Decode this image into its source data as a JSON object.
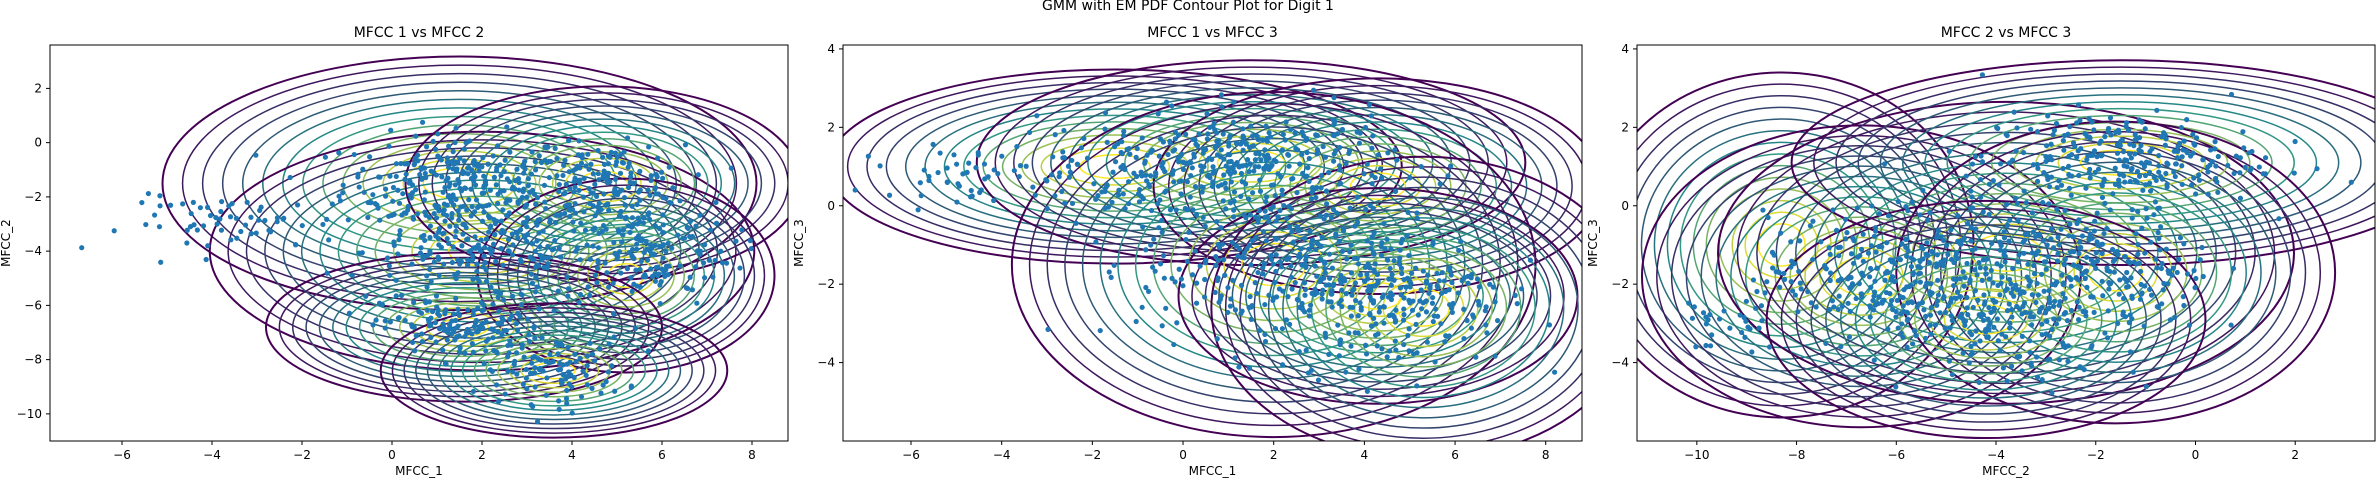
{
  "figure": {
    "title": "GMM with EM PDF Contour Plot for Digit 1"
  },
  "colors": {
    "points": "#1f77b4",
    "contour_low": "#440154",
    "contour_mid": "#21918c",
    "contour_high": "#fde725"
  },
  "chart_data": [
    {
      "type": "scatter",
      "title": "MFCC 1 vs MFCC 2",
      "xlabel": "MFCC_1",
      "ylabel": "MFCC_2",
      "xlim": [
        -7.6,
        8.8
      ],
      "ylim": [
        -11,
        3.6
      ],
      "xticks": [
        -6,
        -4,
        -2,
        0,
        2,
        4,
        6,
        8
      ],
      "yticks": [
        -10,
        -8,
        -6,
        -4,
        -2,
        0,
        2
      ],
      "overlay": "contour",
      "gaussian_components": [
        {
          "mean": [
            1.5,
            -1.5
          ],
          "sd": [
            2.4,
            1.7
          ]
        },
        {
          "mean": [
            2.0,
            -4.0
          ],
          "sd": [
            2.2,
            1.6
          ]
        },
        {
          "mean": [
            4.7,
            -1.5
          ],
          "sd": [
            1.6,
            1.3
          ]
        },
        {
          "mean": [
            5.2,
            -4.9
          ],
          "sd": [
            1.2,
            1.3
          ]
        },
        {
          "mean": [
            1.6,
            -6.8
          ],
          "sd": [
            1.6,
            1.0
          ]
        },
        {
          "mean": [
            3.6,
            -8.4
          ],
          "sd": [
            1.4,
            0.9
          ]
        }
      ],
      "point_clusters": [
        {
          "mean": [
            1.5,
            -1.5
          ],
          "sd": [
            1.3,
            0.9
          ],
          "n": 260
        },
        {
          "mean": [
            2.0,
            -4.0
          ],
          "sd": [
            1.3,
            0.9
          ],
          "n": 200
        },
        {
          "mean": [
            4.7,
            -1.5
          ],
          "sd": [
            0.9,
            0.7
          ],
          "n": 150
        },
        {
          "mean": [
            5.6,
            -4.0
          ],
          "sd": [
            1.0,
            1.0
          ],
          "n": 160
        },
        {
          "mean": [
            1.6,
            -6.8
          ],
          "sd": [
            0.9,
            0.6
          ],
          "n": 140
        },
        {
          "mean": [
            3.6,
            -8.4
          ],
          "sd": [
            0.8,
            0.6
          ],
          "n": 100
        },
        {
          "mean": [
            -3.5,
            -3.0
          ],
          "sd": [
            1.2,
            0.5
          ],
          "n": 60
        }
      ]
    },
    {
      "type": "scatter",
      "title": "MFCC 1 vs MFCC 3",
      "xlabel": "MFCC_1",
      "ylabel": "MFCC_3",
      "xlim": [
        -7.5,
        8.8
      ],
      "ylim": [
        -6.0,
        4.1
      ],
      "xticks": [
        -6,
        -4,
        -2,
        0,
        2,
        4,
        6,
        8
      ],
      "yticks": [
        -4,
        -2,
        0,
        2,
        4
      ],
      "overlay": "contour",
      "gaussian_components": [
        {
          "mean": [
            -1.5,
            1.0
          ],
          "sd": [
            2.3,
            0.9
          ]
        },
        {
          "mean": [
            1.5,
            1.1
          ],
          "sd": [
            2.2,
            0.95
          ]
        },
        {
          "mean": [
            4.3,
            0.5
          ],
          "sd": [
            1.8,
            1.0
          ]
        },
        {
          "mean": [
            2.0,
            -1.5
          ],
          "sd": [
            2.1,
            1.6
          ]
        },
        {
          "mean": [
            4.3,
            -2.3
          ],
          "sd": [
            1.6,
            1.0
          ]
        },
        {
          "mean": [
            5.3,
            -2.6
          ],
          "sd": [
            1.7,
            1.4
          ]
        }
      ],
      "point_clusters": [
        {
          "mean": [
            1.5,
            1.2
          ],
          "sd": [
            1.6,
            0.6
          ],
          "n": 250
        },
        {
          "mean": [
            -1.0,
            0.8
          ],
          "sd": [
            1.5,
            0.6
          ],
          "n": 120
        },
        {
          "mean": [
            2.0,
            -1.5
          ],
          "sd": [
            1.5,
            1.1
          ],
          "n": 280
        },
        {
          "mean": [
            4.8,
            -2.3
          ],
          "sd": [
            1.2,
            0.9
          ],
          "n": 230
        },
        {
          "mean": [
            -5.0,
            0.8
          ],
          "sd": [
            0.8,
            0.3
          ],
          "n": 40
        }
      ]
    },
    {
      "type": "scatter",
      "title": "MFCC 2 vs MFCC 3",
      "xlabel": "MFCC_2",
      "ylabel": "MFCC_3",
      "xlim": [
        -11.2,
        3.6
      ],
      "ylim": [
        -6.0,
        4.1
      ],
      "xticks": [
        -10,
        -8,
        -6,
        -4,
        -2,
        0,
        2
      ],
      "yticks": [
        -4,
        -2,
        0,
        2,
        4
      ],
      "overlay": "contour",
      "gaussian_components": [
        {
          "mean": [
            -8.3,
            -1.0
          ],
          "sd": [
            1.4,
            1.6
          ]
        },
        {
          "mean": [
            -6.7,
            -1.8
          ],
          "sd": [
            1.6,
            1.4
          ]
        },
        {
          "mean": [
            -3.8,
            -1.2
          ],
          "sd": [
            2.1,
            1.4
          ]
        },
        {
          "mean": [
            -1.5,
            1.1
          ],
          "sd": [
            2.4,
            0.95
          ]
        },
        {
          "mean": [
            -1.6,
            -1.7
          ],
          "sd": [
            1.6,
            1.4
          ]
        },
        {
          "mean": [
            -4.2,
            -2.9
          ],
          "sd": [
            1.6,
            1.1
          ]
        }
      ],
      "point_clusters": [
        {
          "mean": [
            -1.5,
            1.2
          ],
          "sd": [
            1.4,
            0.6
          ],
          "n": 250
        },
        {
          "mean": [
            -6.6,
            -1.8
          ],
          "sd": [
            1.0,
            0.8
          ],
          "n": 180
        },
        {
          "mean": [
            -3.9,
            -1.4
          ],
          "sd": [
            1.3,
            1.0
          ],
          "n": 230
        },
        {
          "mean": [
            -1.6,
            -1.8
          ],
          "sd": [
            1.0,
            0.9
          ],
          "n": 160
        },
        {
          "mean": [
            -4.0,
            -3.2
          ],
          "sd": [
            1.2,
            0.8
          ],
          "n": 120
        },
        {
          "mean": [
            -9.3,
            -3.0
          ],
          "sd": [
            0.5,
            0.4
          ],
          "n": 30
        }
      ]
    }
  ]
}
